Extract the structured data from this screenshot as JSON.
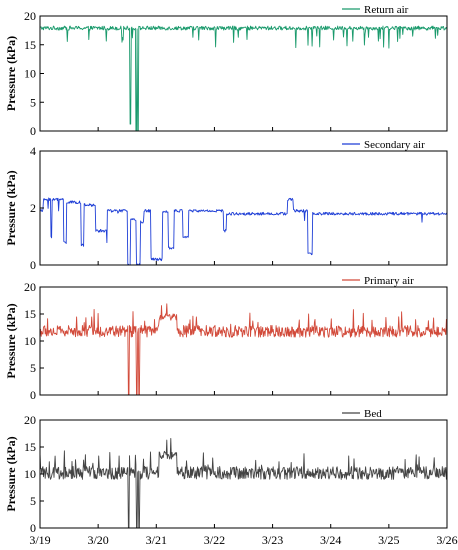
{
  "chart_data": [
    {
      "type": "line",
      "series": [
        {
          "name": "Return air",
          "color": "#1a9a6c"
        }
      ],
      "ylabel": "Pressure (kPa)",
      "ylim": [
        0,
        20
      ],
      "yticks": [
        0,
        5,
        10,
        15,
        20
      ],
      "xlim": [
        0,
        7
      ],
      "baseline": 17.9,
      "noise": 0.35,
      "spike_down": 1.2,
      "dropouts": [
        {
          "x": 1.55,
          "y": 1.2
        },
        {
          "x": 1.65,
          "y": 0
        },
        {
          "x": 1.68,
          "y": 0
        }
      ],
      "legend_position": "top-right",
      "grid": false
    },
    {
      "type": "line",
      "series": [
        {
          "name": "Secondary air",
          "color": "#1f3fd6"
        }
      ],
      "ylabel": "Pressure (kPa)",
      "ylim": [
        0,
        4
      ],
      "yticks": [
        0,
        2,
        4
      ],
      "xlim": [
        0,
        7
      ],
      "noise": 0.05,
      "segments": [
        {
          "x": [
            0.0,
            0.05
          ],
          "y": 1.9
        },
        {
          "x": [
            0.05,
            0.18
          ],
          "y": 2.3
        },
        {
          "x": [
            0.18,
            0.2
          ],
          "y": 1.0
        },
        {
          "x": [
            0.2,
            0.4
          ],
          "y": 2.3
        },
        {
          "x": [
            0.4,
            0.45
          ],
          "y": 0.8
        },
        {
          "x": [
            0.45,
            0.7
          ],
          "y": 2.2
        },
        {
          "x": [
            0.7,
            0.75
          ],
          "y": 0.7
        },
        {
          "x": [
            0.75,
            0.95
          ],
          "y": 2.1
        },
        {
          "x": [
            0.95,
            1.15
          ],
          "y": 1.2
        },
        {
          "x": [
            1.15,
            1.5
          ],
          "y": 1.9
        },
        {
          "x": [
            1.5,
            1.55
          ],
          "y": 0.0
        },
        {
          "x": [
            1.55,
            1.65
          ],
          "y": 1.6
        },
        {
          "x": [
            1.65,
            1.72
          ],
          "y": 0.0
        },
        {
          "x": [
            1.72,
            1.78
          ],
          "y": 1.5
        },
        {
          "x": [
            1.78,
            1.9
          ],
          "y": 1.9
        },
        {
          "x": [
            1.9,
            2.1
          ],
          "y": 0.2
        },
        {
          "x": [
            2.1,
            2.2
          ],
          "y": 1.9
        },
        {
          "x": [
            2.2,
            2.3
          ],
          "y": 0.6
        },
        {
          "x": [
            2.3,
            2.45
          ],
          "y": 1.9
        },
        {
          "x": [
            2.45,
            2.55
          ],
          "y": 1.0
        },
        {
          "x": [
            2.55,
            3.15
          ],
          "y": 1.9
        },
        {
          "x": [
            3.15,
            3.2
          ],
          "y": 1.2
        },
        {
          "x": [
            3.2,
            4.25
          ],
          "y": 1.8
        },
        {
          "x": [
            4.25,
            4.35
          ],
          "y": 2.3
        },
        {
          "x": [
            4.35,
            4.6
          ],
          "y": 1.9
        },
        {
          "x": [
            4.6,
            4.68
          ],
          "y": 0.4
        },
        {
          "x": [
            4.68,
            7.0
          ],
          "y": 1.8
        }
      ],
      "legend_position": "top-right",
      "grid": false
    },
    {
      "type": "line",
      "series": [
        {
          "name": "Primary air",
          "color": "#d24a3a"
        }
      ],
      "ylabel": "Pressure (kPa)",
      "ylim": [
        0,
        20
      ],
      "yticks": [
        0,
        5,
        10,
        15,
        20
      ],
      "xlim": [
        0,
        7
      ],
      "baseline": 11.8,
      "noise": 1.1,
      "spike_up": 3.2,
      "plateaus": [
        {
          "x": [
            2.05,
            2.35
          ],
          "y": 14.5
        }
      ],
      "dropouts": [
        {
          "x": 1.52,
          "y": 0
        },
        {
          "x": 1.66,
          "y": 0
        },
        {
          "x": 1.7,
          "y": 0
        }
      ],
      "legend_position": "top-right",
      "grid": false
    },
    {
      "type": "line",
      "series": [
        {
          "name": "Bed",
          "color": "#444444"
        }
      ],
      "ylabel": "Pressure (kPa)",
      "ylim": [
        0,
        20
      ],
      "yticks": [
        0,
        5,
        10,
        15,
        20
      ],
      "xlim": [
        0,
        7
      ],
      "xticks": [
        "3/19",
        "3/20",
        "3/21",
        "3/22",
        "3/23",
        "3/24",
        "3/25",
        "3/26"
      ],
      "baseline": 10.2,
      "noise": 1.2,
      "spike_up": 3.5,
      "plateaus": [
        {
          "x": [
            2.05,
            2.35
          ],
          "y": 13.5
        }
      ],
      "dropouts": [
        {
          "x": 1.52,
          "y": 0
        },
        {
          "x": 1.66,
          "y": 0
        },
        {
          "x": 1.7,
          "y": 0
        }
      ],
      "legend_position": "top-right",
      "grid": false
    }
  ]
}
